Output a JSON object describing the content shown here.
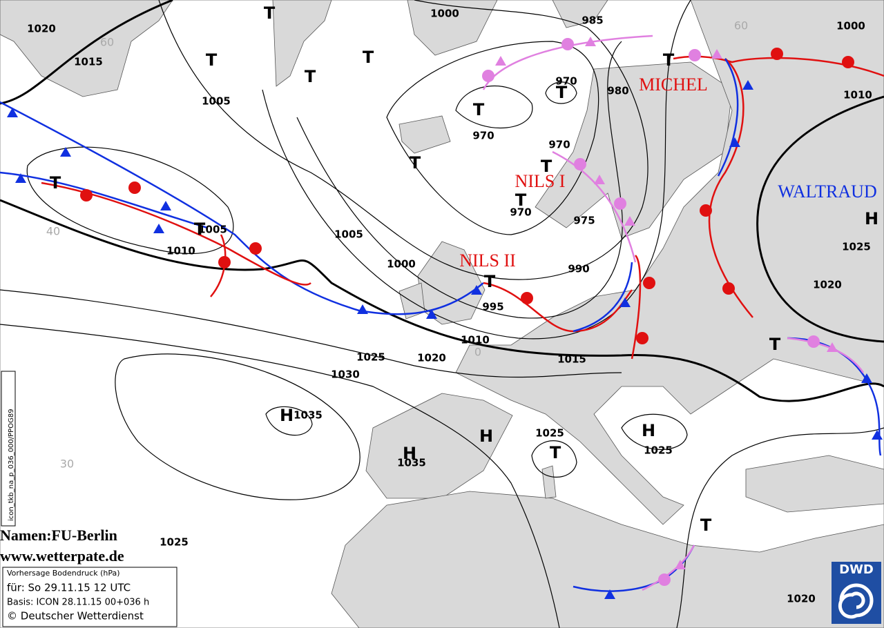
{
  "isobar_labels": [
    1020,
    1015,
    1005,
    1000,
    985,
    1000,
    970,
    980,
    970,
    970,
    1010,
    975,
    970,
    1005,
    1010,
    1005,
    1000,
    990,
    995,
    1010,
    1025,
    1020,
    1015,
    1030,
    1025,
    1020,
    1035,
    1035,
    1025,
    1025,
    1025,
    1020
  ],
  "pressure_centers": [
    "T",
    "T",
    "T",
    "T",
    "T",
    "T",
    "T",
    "T",
    "T",
    "T",
    "T",
    "T",
    "T",
    "T",
    "T",
    "T",
    "H",
    "H",
    "H",
    "H",
    "H"
  ],
  "storm_names": [
    "MICHEL",
    "NILS I",
    "NILS II",
    "WALTRAUD"
  ],
  "grid_labels": [
    "60",
    "60",
    "40",
    "30",
    "0"
  ],
  "credits": {
    "names": "Namen:FU-Berlin",
    "url": "www.wetterpate.de"
  },
  "info_box": {
    "title": "Vorhersage Bodendruck (hPa)",
    "valid": "für:  So 29.11.15  12 UTC",
    "basis": "Basis: ICON  28.11.15 00+036 h",
    "copyright": "© Deutscher Wetterdienst"
  },
  "side_label": "icon_tkb_na_p_036_000/PPOG89",
  "logo": "DWD"
}
